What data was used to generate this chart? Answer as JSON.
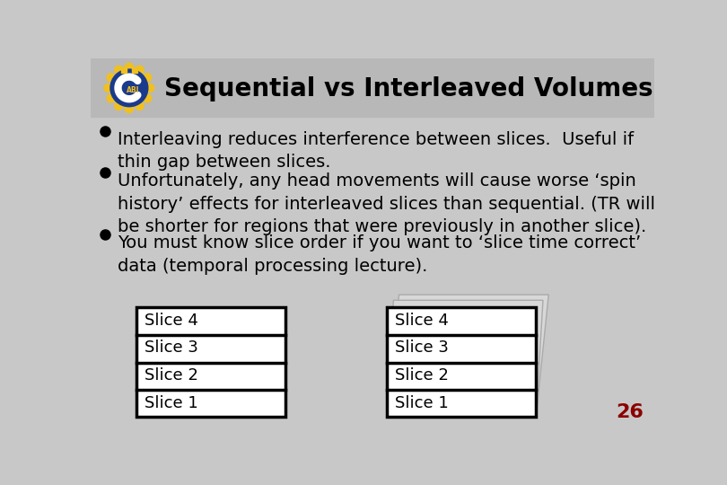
{
  "title": "Sequential vs Interleaved Volumes",
  "background_color": "#c8c8c8",
  "title_bg_color": "#b8b8b8",
  "title_color": "#000000",
  "title_fontsize": 20,
  "bullet_points": [
    "Interleaving reduces interference between slices.  Useful if\nthin gap between slices.",
    "Unfortunately, any head movements will cause worse ‘spin\nhistory’ effects for interleaved slices than sequential. (TR will\nbe shorter for regions that were previously in another slice).",
    "You must know slice order if you want to ‘slice time correct’\ndata (temporal processing lecture)."
  ],
  "bullet_fontsize": 14,
  "slice_labels": [
    "Slice 4",
    "Slice 3",
    "Slice 2",
    "Slice 1"
  ],
  "box_bg": "#ffffff",
  "box_border": "#000000",
  "page_number": "26",
  "page_number_color": "#8b0000",
  "logo_blue": "#1a3a8c",
  "logo_yellow": "#f0c020"
}
